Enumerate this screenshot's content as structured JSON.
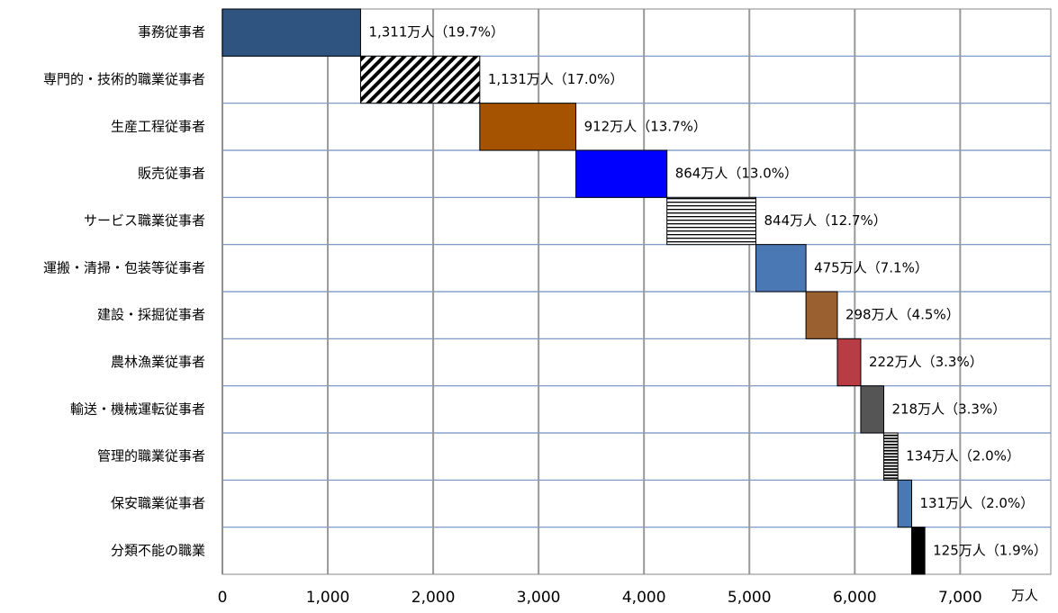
{
  "chart_data": {
    "type": "waterfall-bar",
    "categories": [
      "事務従事者",
      "専門的・技術的職業従事者",
      "生産工程従事者",
      "販売従事者",
      "サービス職業従事者",
      "運搬・清掃・包装等従事者",
      "建設・採掘従事者",
      "農林漁業従事者",
      "輸送・機械運転従事者",
      "管理的職業従事者",
      "保安職業従事者",
      "分類不能の職業"
    ],
    "values": [
      1311,
      1131,
      912,
      864,
      844,
      475,
      298,
      222,
      218,
      134,
      131,
      125
    ],
    "value_labels": [
      "1,311万人（19.7%）",
      "1,131万人（17.0%）",
      "912万人（13.7%）",
      "864万人（13.0%）",
      "844万人（12.7%）",
      "475万人（7.1%）",
      "298万人（4.5%）",
      "222万人（3.3%）",
      "218万人（3.3%）",
      "134万人（2.0%）",
      "131万人（2.0%）",
      "125万人（1.9%）"
    ],
    "colors": [
      "#2f5480",
      "#ffffff",
      "#a65300",
      "#0000ff",
      "#ffffff",
      "#4a78b5",
      "#9a6030",
      "#b83c44",
      "#555555",
      "#ffffff",
      "#4a78b5",
      "#000000"
    ],
    "patterns": [
      null,
      "diagonal",
      null,
      null,
      "horizontal",
      null,
      null,
      null,
      null,
      "horizontal-dense",
      null,
      null
    ],
    "xlabel": "万人",
    "xlim": [
      0,
      7860
    ],
    "xticks": [
      {
        "value": 0,
        "label": "0"
      },
      {
        "value": 1000,
        "label": "1,000"
      },
      {
        "value": 2000,
        "label": "2,000"
      },
      {
        "value": 3000,
        "label": "3,000"
      },
      {
        "value": 4000,
        "label": "4,000"
      },
      {
        "value": 5000,
        "label": "5,000"
      },
      {
        "value": 6000,
        "label": "6,000"
      },
      {
        "value": 7000,
        "label": "7,000"
      }
    ],
    "grid": true
  }
}
